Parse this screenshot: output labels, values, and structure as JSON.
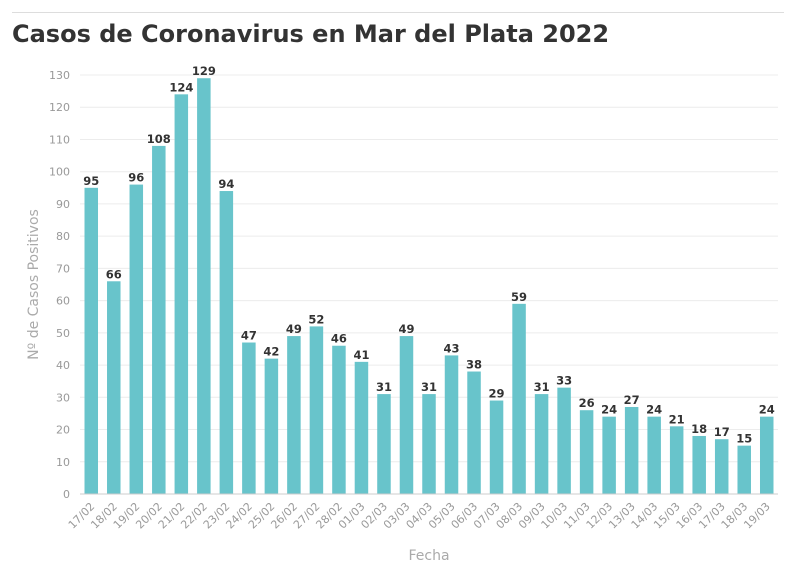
{
  "chart_data": {
    "type": "bar",
    "title": "Casos de Coronavirus en Mar del Plata 2022",
    "xlabel": "Fecha",
    "ylabel": "Nº de Casos Positivos",
    "ylim": [
      0,
      130
    ],
    "yticks": [
      0,
      10,
      20,
      30,
      40,
      50,
      60,
      70,
      80,
      90,
      100,
      110,
      120,
      130
    ],
    "grid": true,
    "legend": "none",
    "bar_color": "#68c4cb",
    "categories": [
      "17/02",
      "18/02",
      "19/02",
      "20/02",
      "21/02",
      "22/02",
      "23/02",
      "24/02",
      "25/02",
      "26/02",
      "27/02",
      "28/02",
      "01/03",
      "02/03",
      "03/03",
      "04/03",
      "05/03",
      "06/03",
      "07/03",
      "08/03",
      "09/03",
      "10/03",
      "11/03",
      "12/03",
      "13/03",
      "14/03",
      "15/03",
      "16/03",
      "17/03",
      "18/03",
      "19/03"
    ],
    "values": [
      95,
      66,
      96,
      108,
      124,
      129,
      94,
      47,
      42,
      49,
      52,
      46,
      41,
      31,
      49,
      31,
      43,
      38,
      29,
      59,
      31,
      33,
      26,
      24,
      27,
      24,
      21,
      18,
      17,
      15,
      24
    ]
  }
}
